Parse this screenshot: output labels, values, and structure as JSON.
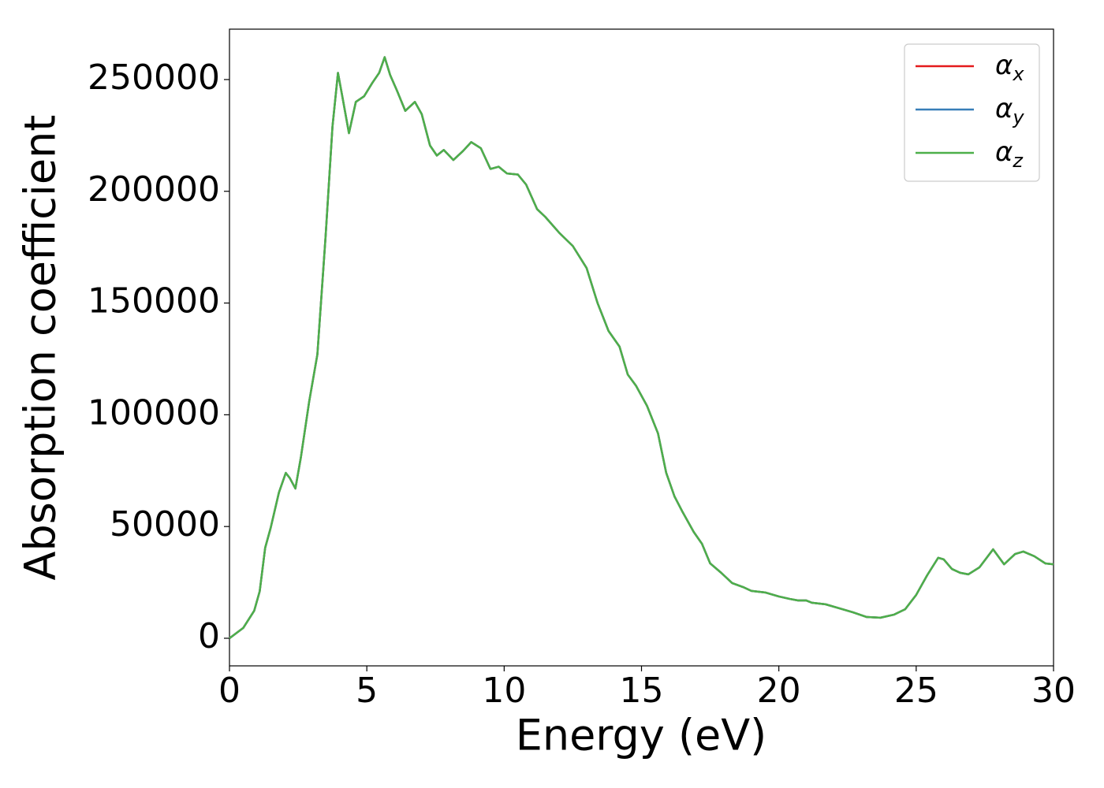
{
  "chart_data": {
    "type": "line",
    "x_label": "Energy (eV)",
    "y_label": "Absorption coefficient",
    "xlim": [
      0,
      30
    ],
    "ylim": [
      -12350,
      272550
    ],
    "xticks": [
      0,
      5,
      10,
      15,
      20,
      25,
      30
    ],
    "yticks": [
      0,
      50000,
      100000,
      150000,
      200000,
      250000
    ],
    "legend": "upper right",
    "x": [
      0,
      0.5,
      0.9,
      1.1,
      1.3,
      1.5,
      1.8,
      2.05,
      2.2,
      2.4,
      2.6,
      2.9,
      3.2,
      3.5,
      3.75,
      3.95,
      4.1,
      4.35,
      4.6,
      4.9,
      5.2,
      5.45,
      5.65,
      5.85,
      6.1,
      6.4,
      6.75,
      7.0,
      7.3,
      7.55,
      7.8,
      8.15,
      8.5,
      8.8,
      9.15,
      9.5,
      9.8,
      10.1,
      10.5,
      10.8,
      11.2,
      11.5,
      12.0,
      12.5,
      13.0,
      13.4,
      13.8,
      14.2,
      14.5,
      14.8,
      15.2,
      15.6,
      15.9,
      16.2,
      16.5,
      16.9,
      17.2,
      17.5,
      17.9,
      18.3,
      18.7,
      19.0,
      19.5,
      20.0,
      20.4,
      20.7,
      21.0,
      21.2,
      21.7,
      22.2,
      22.7,
      23.2,
      23.7,
      24.2,
      24.6,
      25.0,
      25.4,
      25.8,
      26.0,
      26.3,
      26.6,
      26.9,
      27.3,
      27.8,
      28.2,
      28.6,
      28.9,
      29.3,
      29.7,
      30
    ],
    "series": [
      {
        "name": "αx",
        "color": "#e41a1c",
        "values": [
          0,
          4600,
          12300,
          21000,
          40500,
          49400,
          65200,
          74000,
          71600,
          67000,
          81000,
          105800,
          127000,
          180000,
          229000,
          253000,
          243000,
          226000,
          240000,
          242500,
          248500,
          253000,
          260000,
          252000,
          245000,
          236000,
          240000,
          234500,
          220500,
          216000,
          218500,
          214000,
          218000,
          222000,
          219300,
          210000,
          211000,
          208000,
          207500,
          203000,
          192000,
          188500,
          181500,
          175500,
          165700,
          150000,
          137500,
          130500,
          118000,
          113000,
          104000,
          91700,
          74000,
          63500,
          56400,
          47600,
          42300,
          33500,
          29300,
          24700,
          22900,
          21200,
          20500,
          18700,
          17600,
          16900,
          16900,
          15900,
          15200,
          13400,
          11600,
          9500,
          9200,
          10600,
          13000,
          19400,
          28200,
          36000,
          35300,
          31000,
          29300,
          28600,
          31700,
          39800,
          33100,
          37700,
          38800,
          36700,
          33500,
          33100
        ]
      },
      {
        "name": "αy",
        "color": "#377eb8",
        "values": [
          0,
          4600,
          12300,
          21000,
          40500,
          49400,
          65200,
          74000,
          71600,
          67000,
          81000,
          105800,
          127000,
          180000,
          229000,
          253000,
          243000,
          226000,
          240000,
          242500,
          248500,
          253000,
          260000,
          252000,
          245000,
          236000,
          240000,
          234500,
          220500,
          216000,
          218500,
          214000,
          218000,
          222000,
          219300,
          210000,
          211000,
          208000,
          207500,
          203000,
          192000,
          188500,
          181500,
          175500,
          165700,
          150000,
          137500,
          130500,
          118000,
          113000,
          104000,
          91700,
          74000,
          63500,
          56400,
          47600,
          42300,
          33500,
          29300,
          24700,
          22900,
          21200,
          20500,
          18700,
          17600,
          16900,
          16900,
          15900,
          15200,
          13400,
          11600,
          9500,
          9200,
          10600,
          13000,
          19400,
          28200,
          36000,
          35300,
          31000,
          29300,
          28600,
          31700,
          39800,
          33100,
          37700,
          38800,
          36700,
          33500,
          33100
        ]
      },
      {
        "name": "αz",
        "color": "#4daf4a",
        "values": [
          0,
          4600,
          12300,
          21000,
          40500,
          49400,
          65200,
          74000,
          71600,
          67000,
          81000,
          105800,
          127000,
          180000,
          229000,
          253000,
          243000,
          226000,
          240000,
          242500,
          248500,
          253000,
          260000,
          252000,
          245000,
          236000,
          240000,
          234500,
          220500,
          216000,
          218500,
          214000,
          218000,
          222000,
          219300,
          210000,
          211000,
          208000,
          207500,
          203000,
          192000,
          188500,
          181500,
          175500,
          165700,
          150000,
          137500,
          130500,
          118000,
          113000,
          104000,
          91700,
          74000,
          63500,
          56400,
          47600,
          42300,
          33500,
          29300,
          24700,
          22900,
          21200,
          20500,
          18700,
          17600,
          16900,
          16900,
          15900,
          15200,
          13400,
          11600,
          9500,
          9200,
          10600,
          13000,
          19400,
          28200,
          36000,
          35300,
          31000,
          29300,
          28600,
          31700,
          39800,
          33100,
          37700,
          38800,
          36700,
          33500,
          33100
        ]
      }
    ]
  }
}
